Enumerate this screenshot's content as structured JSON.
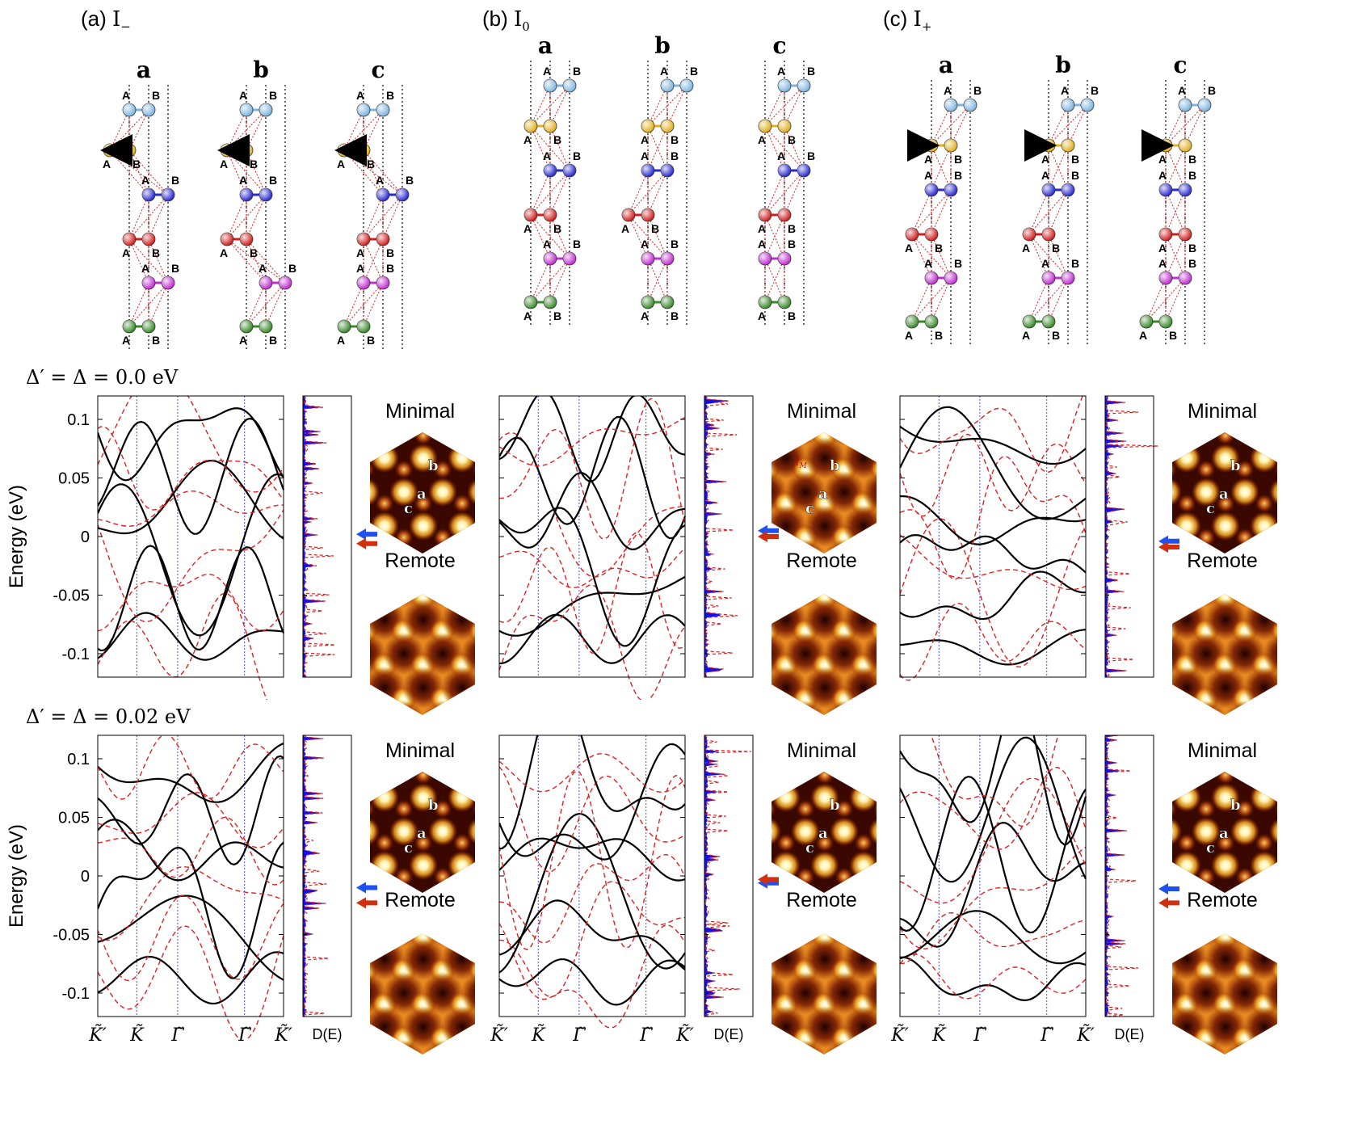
{
  "panels": [
    {
      "tag": "(a)",
      "symbol": "I",
      "sub": "−"
    },
    {
      "tag": "(b)",
      "symbol": "I",
      "sub": "0"
    },
    {
      "tag": "(c)",
      "symbol": "I",
      "sub": "+"
    }
  ],
  "stack_labels": [
    "a",
    "b",
    "c"
  ],
  "site_labels": {
    "left": "A",
    "right": "B"
  },
  "layer_colors": [
    "#7fb6e0",
    "#e0b020",
    "#2a2ad0",
    "#d02020",
    "#c030d0",
    "#3a8a2a"
  ],
  "row_titles": [
    "Δ′ = Δ = 0.0 eV",
    "Δ′ = Δ = 0.02 eV"
  ],
  "axis": {
    "ylabel": "Energy (eV)",
    "yticks": [
      0.1,
      0.05,
      0,
      -0.05,
      -0.1
    ],
    "ytick_labels": [
      "0.1",
      "0.05",
      "0",
      "-0.05",
      "-0.1"
    ],
    "ylim": [
      -0.12,
      0.12
    ],
    "xtick_labels": [
      "K̃′",
      "K̃",
      "Γ̃",
      "Γ̃",
      "K̃′"
    ],
    "dos_label": "D(E)"
  },
  "map_labels": {
    "minimal": "Minimal",
    "remote": "Remote",
    "sites": [
      "a",
      "b",
      "c"
    ],
    "length": "l",
    "length_sub": "M"
  },
  "arrows": {
    "row0": [
      {
        "blue": 0.002,
        "red": -0.006
      },
      {
        "blue": 0.005,
        "red": 0.0
      },
      {
        "blue": -0.004,
        "red": -0.009
      }
    ],
    "row1": [
      {
        "blue": -0.01,
        "red": -0.023
      },
      {
        "blue": -0.006,
        "red": -0.003
      },
      {
        "blue": -0.011,
        "red": -0.023
      }
    ]
  },
  "colors": {
    "solid": "#000000",
    "dashed": "#e02020",
    "dos": "#1010ee",
    "guide": "#5050dd",
    "arrow_blue": "#2050f0",
    "arrow_red": "#d03010"
  }
}
